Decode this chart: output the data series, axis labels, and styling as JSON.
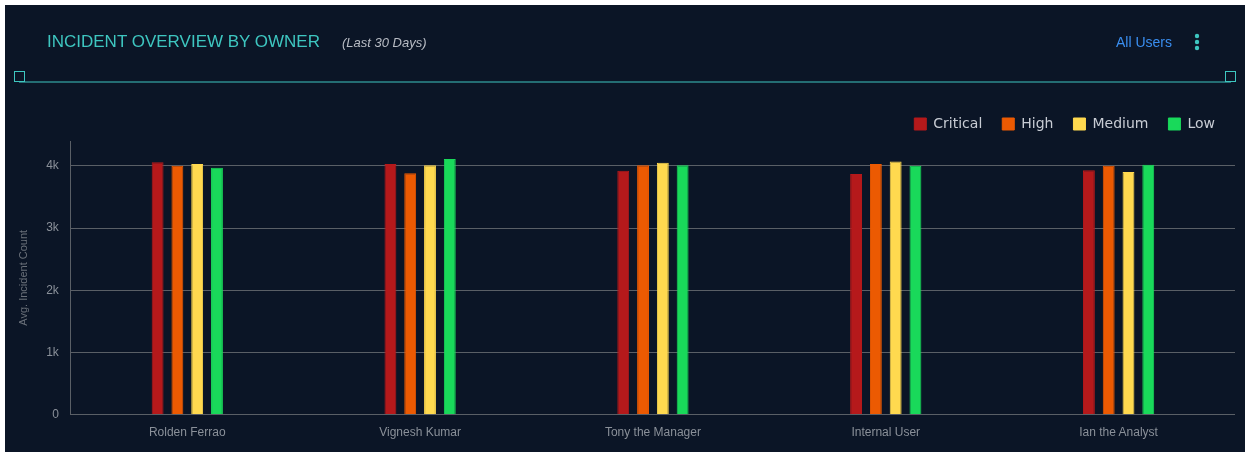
{
  "chart_data": {
    "type": "bar",
    "title": "INCIDENT OVERVIEW BY OWNER",
    "subtitle": "(Last 30 Days)",
    "ylabel": "Avg. Incident Count",
    "annotations": [
      "All Users"
    ],
    "categories": [
      "Rolden Ferrao",
      "Vignesh Kumar",
      "Tony the Manager",
      "Internal User",
      "Ian the Analyst"
    ],
    "series": [
      {
        "name": "Critical",
        "color": "#b5191b",
        "values": [
          4060,
          4030,
          3920,
          3870,
          3930
        ]
      },
      {
        "name": "High",
        "color": "#ec5a02",
        "values": [
          4000,
          3880,
          4010,
          4030,
          4000
        ]
      },
      {
        "name": "Medium",
        "color": "#ffd94f",
        "values": [
          4030,
          4010,
          4050,
          4070,
          3900
        ]
      },
      {
        "name": "Low",
        "color": "#19d95a",
        "values": [
          3970,
          4110,
          4010,
          4000,
          4020
        ]
      }
    ],
    "ylim": [
      0,
      4400
    ],
    "yticks": [
      {
        "value": 0,
        "label": "0"
      },
      {
        "value": 1000,
        "label": "1k"
      },
      {
        "value": 2000,
        "label": "2k"
      },
      {
        "value": 3000,
        "label": "3k"
      },
      {
        "value": 4000,
        "label": "4k"
      }
    ],
    "grid": "y",
    "legend": "top right"
  }
}
